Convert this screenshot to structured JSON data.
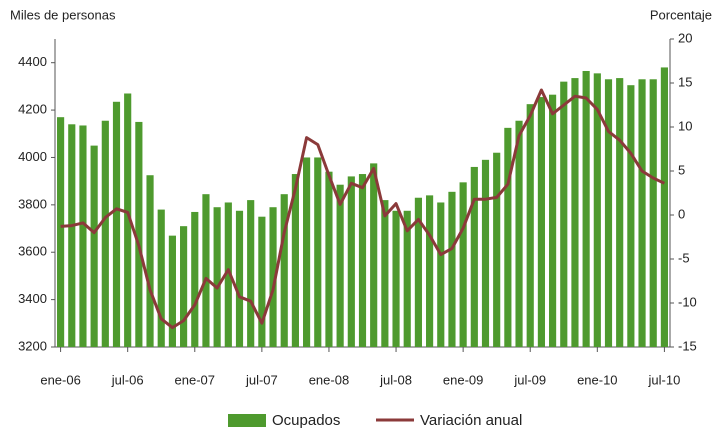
{
  "chart_data": {
    "type": "bar_line",
    "y_label": "Miles de personas",
    "y2_label": "Porcentaje",
    "categories": [
      "ene-06",
      null,
      null,
      null,
      null,
      null,
      "jul-06",
      null,
      null,
      null,
      null,
      null,
      "ene-07",
      null,
      null,
      null,
      null,
      null,
      "jul-07",
      null,
      null,
      null,
      null,
      null,
      "ene-08",
      null,
      null,
      null,
      null,
      null,
      "jul-08",
      null,
      null,
      null,
      null,
      null,
      "ene-09",
      null,
      null,
      null,
      null,
      null,
      "jul-09",
      null,
      null,
      null,
      null,
      null,
      "ene-10",
      null,
      null,
      null,
      null,
      null,
      "jul-10"
    ],
    "series": [
      {
        "name": "Ocupados",
        "type": "bar",
        "color": "#4e9a2e",
        "values": [
          4170,
          4140,
          4135,
          4050,
          4155,
          4235,
          4270,
          4150,
          3925,
          3780,
          3670,
          3710,
          3770,
          3845,
          3790,
          3810,
          3775,
          3820,
          3750,
          3790,
          3845,
          3930,
          4000,
          4000,
          3940,
          3885,
          3920,
          3930,
          3975,
          3820,
          3775,
          3775,
          3830,
          3840,
          3810,
          3855,
          3895,
          3960,
          3990,
          4020,
          4125,
          4155,
          4225,
          4255,
          4265,
          4320,
          4335,
          4365,
          4355,
          4330,
          4335,
          4305,
          4330,
          4330,
          4380
        ]
      },
      {
        "name": "Variación anual",
        "type": "line",
        "axis": "y2",
        "color": "#8b3a3a",
        "values": [
          -1.3,
          -1.2,
          -0.9,
          -2.0,
          -0.3,
          0.7,
          0.3,
          -3.5,
          -8.5,
          -11.8,
          -12.8,
          -12.0,
          -10.2,
          -7.2,
          -8.3,
          -6.2,
          -9.3,
          -9.8,
          -12.3,
          -8.5,
          -2.0,
          3.0,
          8.8,
          8.0,
          4.5,
          1.2,
          3.6,
          3.1,
          5.3,
          -0.1,
          1.3,
          -1.8,
          -0.5,
          -2.3,
          -4.5,
          -3.8,
          -1.5,
          1.8,
          1.8,
          2.0,
          3.5,
          9.0,
          11.3,
          14.2,
          11.5,
          12.5,
          13.5,
          13.3,
          12.0,
          9.5,
          8.5,
          7.0,
          5.0,
          4.2,
          3.6
        ]
      }
    ],
    "ylim": [
      3200,
      4500
    ],
    "yticks": [
      3200,
      3400,
      3600,
      3800,
      4000,
      4200,
      4400
    ],
    "y2lim": [
      -15,
      20
    ],
    "y2ticks": [
      -15,
      -10,
      -5,
      0,
      5,
      10,
      15,
      20
    ],
    "legend": "bottom"
  }
}
